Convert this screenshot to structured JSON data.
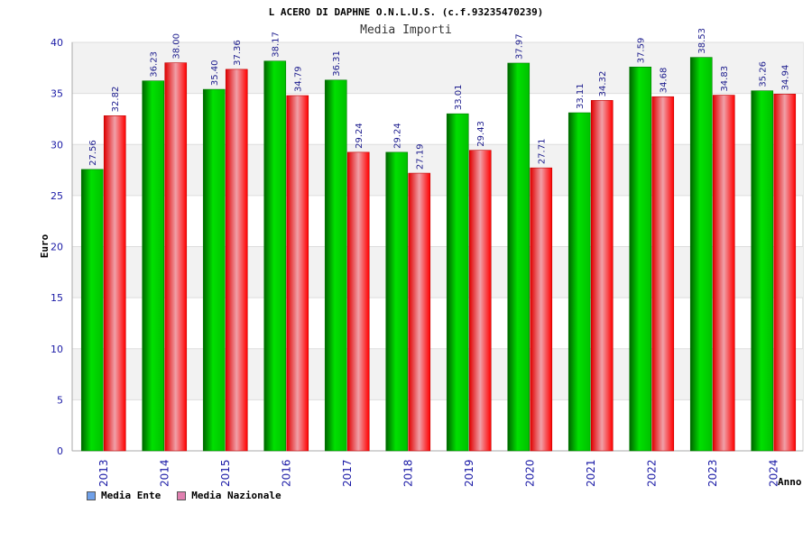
{
  "chart_data": {
    "type": "bar",
    "title": "L ACERO DI DAPHNE O.N.L.U.S. (c.f.93235470239)",
    "subtitle": "Media Importi",
    "xlabel": "Anno",
    "ylabel": "Euro",
    "ylim": [
      0,
      40
    ],
    "yticks": [
      "0",
      "5",
      "10",
      "15",
      "20",
      "25",
      "30",
      "35",
      "40"
    ],
    "categories": [
      "2013",
      "2014",
      "2015",
      "2016",
      "2017",
      "2018",
      "2019",
      "2020",
      "2021",
      "2022",
      "2023",
      "2024"
    ],
    "series": [
      {
        "name": "Media Ente",
        "color": "#00c000",
        "values": [
          27.56,
          36.23,
          35.4,
          38.17,
          36.31,
          29.24,
          33.01,
          37.97,
          33.11,
          37.59,
          38.53,
          35.26
        ],
        "labels": [
          "27.56",
          "36.23",
          "35.40",
          "38.17",
          "36.31",
          "29.24",
          "33.01",
          "37.97",
          "33.11",
          "37.59",
          "38.53",
          "35.26"
        ]
      },
      {
        "name": "Media Nazionale",
        "color": "#ff0000",
        "values": [
          32.82,
          38.0,
          37.36,
          34.79,
          29.24,
          27.19,
          29.43,
          27.71,
          34.32,
          34.68,
          34.83,
          34.94
        ],
        "labels": [
          "32.82",
          "38.00",
          "37.36",
          "34.79",
          "29.24",
          "27.19",
          "29.43",
          "27.71",
          "34.32",
          "34.68",
          "34.83",
          "34.94"
        ]
      }
    ],
    "legend": {
      "position": "bottom-left",
      "items": [
        {
          "label": "Media Ente",
          "color": "#6fa0e8"
        },
        {
          "label": "Media Nazionale",
          "color": "#e080b0"
        }
      ]
    },
    "grid": true
  }
}
